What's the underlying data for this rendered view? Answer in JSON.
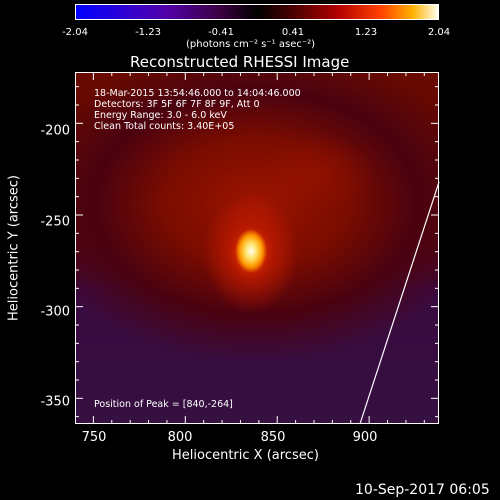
{
  "colorbar": {
    "ticks": [
      "-2.04",
      "-1.23",
      "-0.41",
      "0.41",
      "1.23",
      "2.04"
    ],
    "unit": "(photons cm⁻² s⁻¹ asec⁻²)",
    "min": -2.04,
    "max": 2.04
  },
  "title": "Reconstructed RHESSI Image",
  "info": {
    "line1": "18-Mar-2015 13:54:46.000 to 14:04:46.000",
    "line2": "Detectors: 3F 5F 6F 7F 8F 9F, Att 0",
    "line3": "Energy Range: 3.0 - 6.0 keV",
    "line4": "Clean    Total counts: 3.40E+05"
  },
  "peak_text": "Position of Peak = [840,-264]",
  "axes": {
    "xlabel": "Heliocentric X (arcsec)",
    "ylabel": "Heliocentric Y (arcsec)",
    "xticks": [
      "750",
      "800",
      "850",
      "900"
    ],
    "yticks": [
      "-200",
      "-250",
      "-300",
      "-350"
    ],
    "xlim": [
      740,
      938
    ],
    "ylim": [
      -364,
      -172
    ]
  },
  "peak": {
    "x": 840,
    "y": -264
  },
  "limb_line": {
    "points": [
      [
        895,
        -364
      ],
      [
        938,
        -232
      ]
    ]
  },
  "date": "10-Sep-2017 06:05"
}
